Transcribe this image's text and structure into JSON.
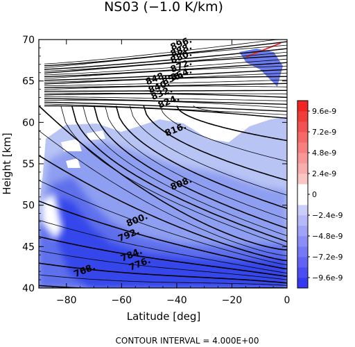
{
  "chart_data": {
    "type": "heatmap",
    "title": "NS03 (−1.0 K/km)",
    "xlabel": "Latitude [deg]",
    "ylabel": "Height [km]",
    "xlim": [
      -90,
      0
    ],
    "ylim": [
      40,
      70
    ],
    "x_ticks": [
      -80,
      -60,
      -40,
      -20,
      0
    ],
    "x_tick_labels": [
      "−80",
      "−60",
      "−40",
      "−20",
      "0"
    ],
    "y_ticks": [
      40,
      45,
      50,
      55,
      60,
      65,
      70
    ],
    "y_tick_labels": [
      "40",
      "45",
      "50",
      "55",
      "60",
      "65",
      "70"
    ],
    "colorbar": {
      "range": [
        -1.08e-08,
        1.08e-08
      ],
      "ticks": [
        9.6e-09,
        7.2e-09,
        4.8e-09,
        2.4e-09,
        0,
        -2.4e-09,
        -4.8e-09,
        -7.2e-09,
        -9.6e-09
      ],
      "tick_labels": [
        "9.6e-9",
        "7.2e-9",
        "4.8e-9",
        "2.4e-9",
        "0",
        "−2.4e-9",
        "−4.8e-9",
        "−7.2e-9",
        "−9.6e-9"
      ],
      "negative_color": "#2a2ef0",
      "positive_color": "#f01818"
    },
    "contour_interval": 4.0,
    "contour_labels": [
      {
        "text": "768.",
        "x": -73,
        "y": 41.8
      },
      {
        "text": "776.",
        "x": -53,
        "y": 42.6
      },
      {
        "text": "784.",
        "x": -56,
        "y": 43.7
      },
      {
        "text": "792.",
        "x": -57,
        "y": 46.1
      },
      {
        "text": "800.",
        "x": -54,
        "y": 47.9
      },
      {
        "text": "808.",
        "x": -38,
        "y": 52.3
      },
      {
        "text": "816.",
        "x": -40,
        "y": 58.8
      },
      {
        "text": "824.",
        "x": -42.5,
        "y": 62.2
      },
      {
        "text": "832.",
        "x": -45,
        "y": 63.2
      },
      {
        "text": "840.",
        "x": -46,
        "y": 64.0
      },
      {
        "text": "848.",
        "x": -47,
        "y": 65.0
      },
      {
        "text": "856.",
        "x": -41,
        "y": 65.0
      },
      {
        "text": "864.",
        "x": -38,
        "y": 65.5
      },
      {
        "text": "872.",
        "x": -38,
        "y": 66.5
      },
      {
        "text": "880.",
        "x": -38,
        "y": 67.6
      },
      {
        "text": "888.",
        "x": -38,
        "y": 68.4
      },
      {
        "text": "896.",
        "x": -38,
        "y": 69.2
      }
    ],
    "footer": "CONTOUR INTERVAL = 4.000E+00"
  }
}
